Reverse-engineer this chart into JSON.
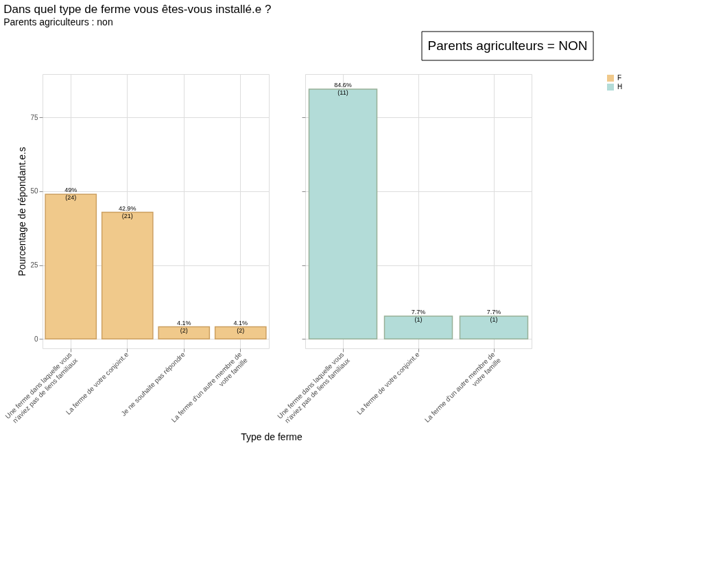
{
  "chart_data": [
    {
      "type": "bar",
      "title": "Dans quel type de ferme vous êtes-vous installé.e ?",
      "subtitle": "Parents agriculteurs : non",
      "ylabel": "Pourcentage de répondant.e.s",
      "xlabel": "Type de ferme",
      "annotations": [
        "Parents agriculteurs = NON"
      ],
      "categories": [
        "Une ferme dans laquelle vous\nn'aviez pas de liens familiaux",
        "La ferme de votre conjoint.e",
        "Je ne souhaite pas répondre",
        "La ferme d'un autre membre de\nvotre famille"
      ],
      "series": [
        {
          "name": "F",
          "color": "#f0c98b",
          "values": [
            49,
            42.9,
            4.1,
            4.1
          ],
          "value_labels": [
            "49%\n(24)",
            "42.9%\n(21)",
            "4.1%\n(2)",
            "4.1%\n(2)"
          ]
        }
      ],
      "ylim": [
        -3.2,
        89.7
      ],
      "yticks": [
        0,
        25,
        50,
        75
      ],
      "grid": true,
      "legend": "right"
    },
    {
      "type": "bar",
      "categories": [
        "Une ferme dans laquelle vous\nn'aviez pas de liens familiaux",
        "La ferme de votre conjoint.e",
        "La ferme d'un autre membre de\nvotre famille"
      ],
      "series": [
        {
          "name": "H",
          "color": "#b3dcd8",
          "values": [
            84.6,
            7.7,
            7.7
          ],
          "value_labels": [
            "84.6%\n(11)",
            "7.7%\n(1)",
            "7.7%\n(1)"
          ]
        }
      ],
      "ylim": [
        -3.2,
        89.7
      ],
      "yticks": [
        0,
        25,
        50,
        75
      ],
      "grid": true,
      "legend": "right",
      "tick_labels": "x"
    }
  ]
}
